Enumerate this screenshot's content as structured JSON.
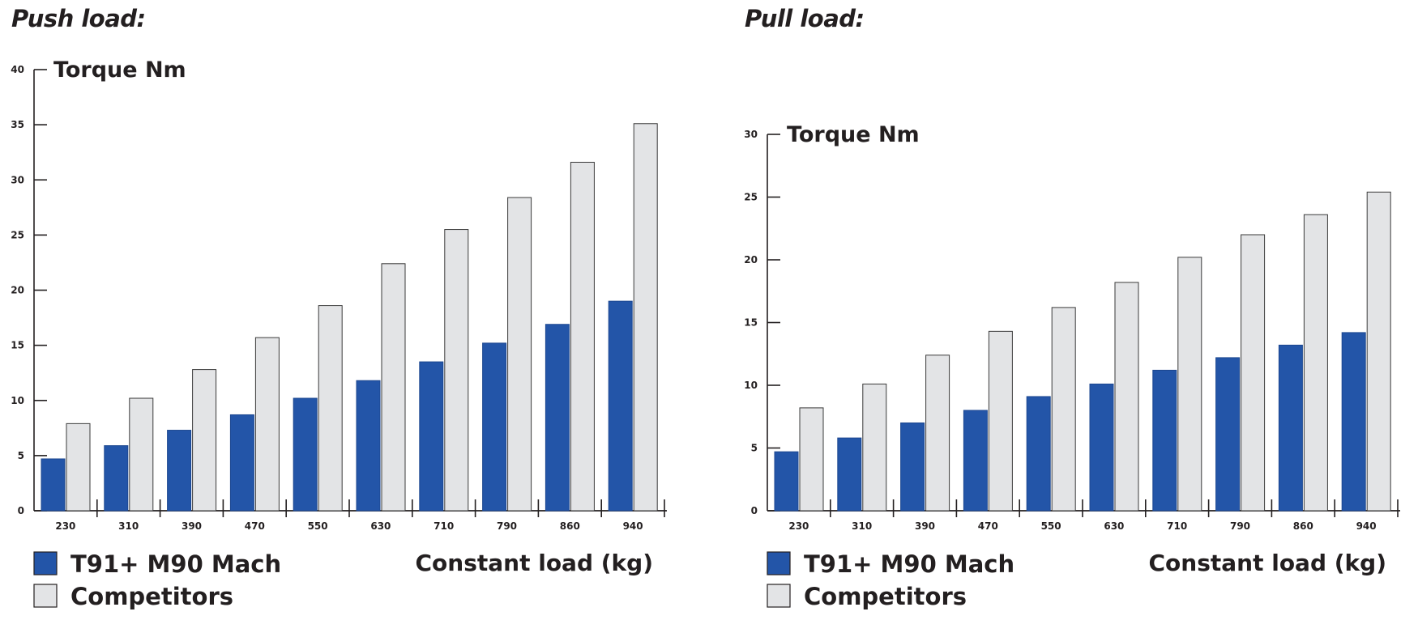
{
  "colors": {
    "primary": "#2355a8",
    "competitor": "#e3e4e6",
    "axis": "#231f20",
    "highlight_tick": "#2355a8"
  },
  "chart_data": [
    {
      "type": "bar",
      "title": "Push load:",
      "ylabel": "Torque Nm",
      "xlabel": "Constant load (kg)",
      "categories": [
        "230",
        "310",
        "390",
        "470",
        "550",
        "630",
        "710",
        "790",
        "860",
        "940"
      ],
      "highlight_category": "940",
      "yticks": [
        0,
        5,
        10,
        15,
        20,
        25,
        30,
        35,
        40
      ],
      "ylim": [
        0,
        40
      ],
      "grid": false,
      "legend_position": "bottom-left",
      "series": [
        {
          "name": "T91+ M90 Mach",
          "color": "#2355a8",
          "values": [
            4.7,
            5.9,
            7.3,
            8.7,
            10.2,
            11.8,
            13.5,
            15.2,
            16.9,
            19.0
          ]
        },
        {
          "name": "Competitors",
          "color": "#e3e4e6",
          "values": [
            7.9,
            10.2,
            12.8,
            15.7,
            18.6,
            22.4,
            25.5,
            28.4,
            31.6,
            35.1
          ]
        }
      ]
    },
    {
      "type": "bar",
      "title": "Pull load:",
      "ylabel": "Torque Nm",
      "xlabel": "Constant load (kg)",
      "categories": [
        "230",
        "310",
        "390",
        "470",
        "550",
        "630",
        "710",
        "790",
        "860",
        "940"
      ],
      "highlight_category": "940",
      "yticks": [
        0,
        5,
        10,
        15,
        20,
        25,
        30
      ],
      "ylim": [
        0,
        30
      ],
      "grid": false,
      "legend_position": "bottom-left",
      "series": [
        {
          "name": "T91+ M90 Mach",
          "color": "#2355a8",
          "values": [
            4.7,
            5.8,
            7.0,
            8.0,
            9.1,
            10.1,
            11.2,
            12.2,
            13.2,
            14.2
          ]
        },
        {
          "name": "Competitors",
          "color": "#e3e4e6",
          "values": [
            8.2,
            10.1,
            12.4,
            14.3,
            16.2,
            18.2,
            20.2,
            22.0,
            23.6,
            25.4
          ]
        }
      ]
    }
  ]
}
